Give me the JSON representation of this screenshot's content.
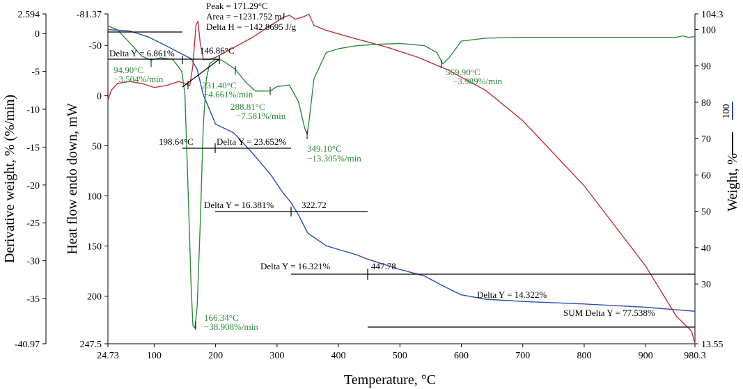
{
  "chart_data": {
    "type": "line",
    "xlabel": "Temperature, °C",
    "ylabel_left_outer": "Derivative weight, % (%/min)",
    "ylabel_left_inner": "Heat flow endo down, mW",
    "ylabel_right": "Weight, %",
    "xlim": [
      24.73,
      980.3
    ],
    "x_ticks": [
      "24.73",
      "100",
      "200",
      "300",
      "400",
      "500",
      "600",
      "700",
      "800",
      "900",
      "980.3"
    ],
    "x_tick_values": [
      24.73,
      100,
      200,
      300,
      400,
      500,
      600,
      700,
      800,
      900,
      980.3
    ],
    "deriv_ylim": [
      -40.97,
      2.594
    ],
    "deriv_ticks": [
      "2.594",
      "0",
      "-5",
      "-10",
      "-15",
      "-20",
      "-25",
      "-30",
      "-35",
      "-40.97"
    ],
    "deriv_tick_values": [
      2.594,
      0,
      -5,
      -10,
      -15,
      -20,
      -25,
      -30,
      -35,
      -40.97
    ],
    "heatflow_ylim": [
      -81.37,
      247.5
    ],
    "heatflow_ticks": [
      "-81.37",
      "-50",
      "0",
      "50",
      "100",
      "150",
      "200",
      "247.5"
    ],
    "heatflow_tick_values": [
      -81.37,
      -50,
      0,
      50,
      100,
      150,
      200,
      247.5
    ],
    "weight_ylim": [
      13.55,
      104.3
    ],
    "weight_ticks": [
      "104.3",
      "100",
      "90",
      "80",
      "70",
      "60",
      "50",
      "40",
      "30",
      "13.55"
    ],
    "weight_tick_values": [
      104.3,
      100,
      90,
      80,
      70,
      60,
      50,
      40,
      30,
      13.55
    ],
    "right_legend_marks": [
      "100"
    ],
    "colors": {
      "weight": "#2d4fa8",
      "heat_flow": "#c0323a",
      "derivative": "#2e8b3a",
      "annotation": "#000000"
    },
    "series": [
      {
        "axis": "weight",
        "x": [
          24.73,
          60,
          90,
          120,
          145,
          160,
          170,
          180,
          195,
          200,
          230,
          260,
          290,
          310,
          322.7,
          335,
          350,
          380,
          400,
          430,
          447.8,
          470,
          500,
          540,
          570,
          600,
          640,
          700,
          800,
          900,
          980.3
        ],
        "y": [
          100,
          99.6,
          98,
          95.5,
          93.3,
          92,
          89,
          82,
          76,
          74,
          71.5,
          66,
          60,
          55,
          52.4,
          49,
          44,
          40.5,
          39.5,
          38,
          36.8,
          35.6,
          34,
          32.2,
          29.5,
          27,
          25.8,
          25.2,
          24.5,
          23.6,
          22.5
        ]
      },
      {
        "axis": "heatflow",
        "x": [
          24.73,
          30,
          40,
          60,
          80,
          100,
          120,
          140,
          150,
          158,
          163,
          168,
          171.3,
          175,
          180,
          190,
          200,
          230,
          260,
          290,
          310,
          320,
          330,
          345,
          352,
          360,
          380,
          420,
          480,
          530,
          580,
          640,
          700,
          800,
          900,
          950,
          975,
          980.3
        ],
        "y": [
          5,
          -5,
          -12,
          -14,
          -12,
          -8,
          -10,
          -14,
          -12,
          -10,
          -30,
          -70,
          -74,
          -52,
          -36,
          -36,
          -38,
          -48,
          -58,
          -70,
          -78,
          -80,
          -76,
          -79,
          -81,
          -70,
          -65,
          -58,
          -48,
          -38,
          -25,
          -5,
          25,
          90,
          170,
          220,
          235,
          247.5
        ]
      },
      {
        "axis": "derivative",
        "x": [
          24.73,
          40,
          60,
          80,
          94.9,
          110,
          130,
          145,
          150,
          155,
          160,
          163,
          166.3,
          170,
          175,
          180,
          185,
          190,
          200,
          210,
          231.4,
          250,
          265,
          288.8,
          300,
          320,
          335,
          345,
          349.1,
          353,
          360,
          380,
          400,
          430,
          470,
          500,
          540,
          560,
          569.9,
          580,
          600,
          640,
          700,
          800,
          900,
          950,
          960,
          970,
          980.3
        ],
        "y": [
          1,
          0.5,
          -1.2,
          -3,
          -3.5,
          -3.2,
          -3.4,
          -5,
          -8,
          -20,
          -33,
          -38.5,
          -38.9,
          -36,
          -25,
          -12,
          -6,
          -4,
          -3.4,
          -3.5,
          -4.66,
          -6.5,
          -7.6,
          -7.58,
          -7,
          -6.8,
          -9,
          -12.5,
          -13.3,
          -11,
          -6,
          -2.5,
          -2.0,
          -1.6,
          -1.4,
          -1.3,
          -1.6,
          -2.5,
          -3.99,
          -3.2,
          -1.0,
          -0.6,
          -0.5,
          -0.5,
          -0.5,
          -0.5,
          -0.3,
          -0.5,
          -0.4
        ]
      }
    ],
    "annotations": {
      "peak": [
        "Peak = 171.29°C",
        "Area = −1231.752 mJ",
        "Delta H = −142.8695 J/g"
      ],
      "delta_y_1": "Delta Y = 6.861%",
      "temp_146": "146.86°C",
      "temp_198": "198.64°C",
      "delta_y_2": "Delta Y = 23.652%",
      "delta_y_3": "Delta Y = 16.381%",
      "temp_322": "322.72",
      "delta_y_4": "Delta Y = 16.321%",
      "temp_447": "447.78",
      "delta_y_5": "Delta Y = 14.322%",
      "sum_delta": "SUM Delta Y = 77.538%",
      "deriv_peaks": [
        [
          "94.90°C",
          "−3.504%/min"
        ],
        [
          "231.40°C",
          "−4.661%/min"
        ],
        [
          "288.81°C",
          "−7.581%/min"
        ],
        [
          "349.10°C",
          "−13.305%/min"
        ],
        [
          "569.90°C",
          "−3.989%/min"
        ],
        [
          "166.34°C",
          "−38.908%/min"
        ]
      ]
    }
  }
}
